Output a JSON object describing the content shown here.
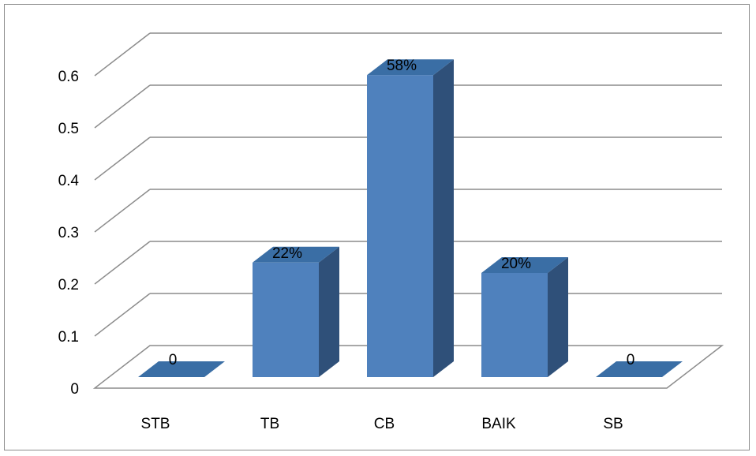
{
  "chart_data": {
    "type": "bar",
    "categories": [
      "STB",
      "TB",
      "CB",
      "BAIK",
      "SB"
    ],
    "values": [
      0,
      0.22,
      0.58,
      0.2,
      0
    ],
    "data_labels": [
      "0",
      "22%",
      "58%",
      "20%",
      "0"
    ],
    "y_ticks": [
      "0",
      "0.1",
      "0.2",
      "0.3",
      "0.4",
      "0.5",
      "0.6"
    ],
    "ylim": [
      0,
      0.6
    ],
    "grid": true,
    "legend": "none",
    "three_d": true,
    "colors": {
      "bar_front": "#4f81bd",
      "bar_top": "#3a6ea5",
      "bar_side": "#2f5079",
      "grid": "#8c8c8c"
    }
  }
}
